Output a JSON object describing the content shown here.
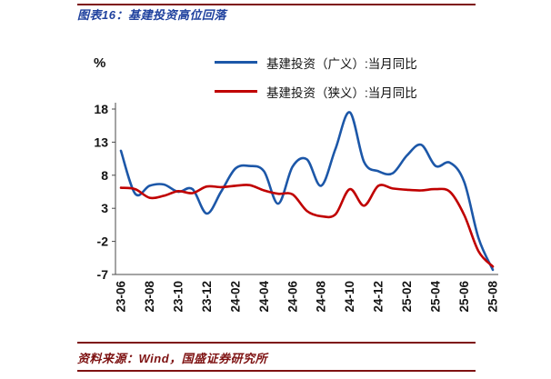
{
  "header": {
    "title": "图表16：基建投资高位回落"
  },
  "chart_data": {
    "type": "line",
    "title": "基建投资高位回落",
    "ylabel": "%",
    "ylim": [
      -7,
      18
    ],
    "yticks": [
      18,
      13,
      8,
      3,
      -2,
      -7
    ],
    "grid": false,
    "legend_position": "top",
    "x_tick_step": 2,
    "x": [
      "23-06",
      "23-07",
      "23-08",
      "23-09",
      "23-10",
      "23-11",
      "23-12",
      "24-01",
      "24-02",
      "24-03",
      "24-04",
      "24-05",
      "24-06",
      "24-07",
      "24-08",
      "24-09",
      "24-10",
      "24-11",
      "24-12",
      "25-01",
      "25-02",
      "25-03",
      "25-04",
      "25-05",
      "25-06",
      "25-07",
      "25-08"
    ],
    "x_tick_labels": [
      "23-06",
      "23-08",
      "23-10",
      "23-12",
      "24-02",
      "24-04",
      "24-06",
      "24-08",
      "24-10",
      "24-12",
      "25-02",
      "25-04",
      "25-06",
      "25-08"
    ],
    "series": [
      {
        "name": "基建投资（广义）:当月同比",
        "color": "#1C57A8",
        "values": [
          11.7,
          5.2,
          6.4,
          6.6,
          5.5,
          5.9,
          2.2,
          5.5,
          9.0,
          9.4,
          8.6,
          3.7,
          9.3,
          10.4,
          6.4,
          12.0,
          17.5,
          10.0,
          8.6,
          8.3,
          11.0,
          12.6,
          9.4,
          9.9,
          7.0,
          -1.5,
          -6.3
        ]
      },
      {
        "name": "基建投资（狭义）:当月同比",
        "color": "#C00000",
        "values": [
          6.1,
          5.9,
          4.6,
          4.9,
          5.6,
          5.3,
          6.3,
          6.2,
          6.4,
          6.5,
          5.7,
          5.2,
          5.1,
          2.6,
          1.8,
          2.1,
          5.9,
          3.4,
          6.4,
          6.0,
          5.8,
          5.7,
          5.9,
          5.5,
          2.0,
          -3.5,
          -5.8
        ]
      }
    ]
  },
  "footer": {
    "source": "资料来源：Wind，国盛证券研究所"
  },
  "colors": {
    "title_blue": "#1F419E",
    "rule_maroon": "#7E1212",
    "broad_blue": "#1C57A8",
    "narrow_red": "#C00000",
    "axis_gray": "#4a4a4a"
  }
}
